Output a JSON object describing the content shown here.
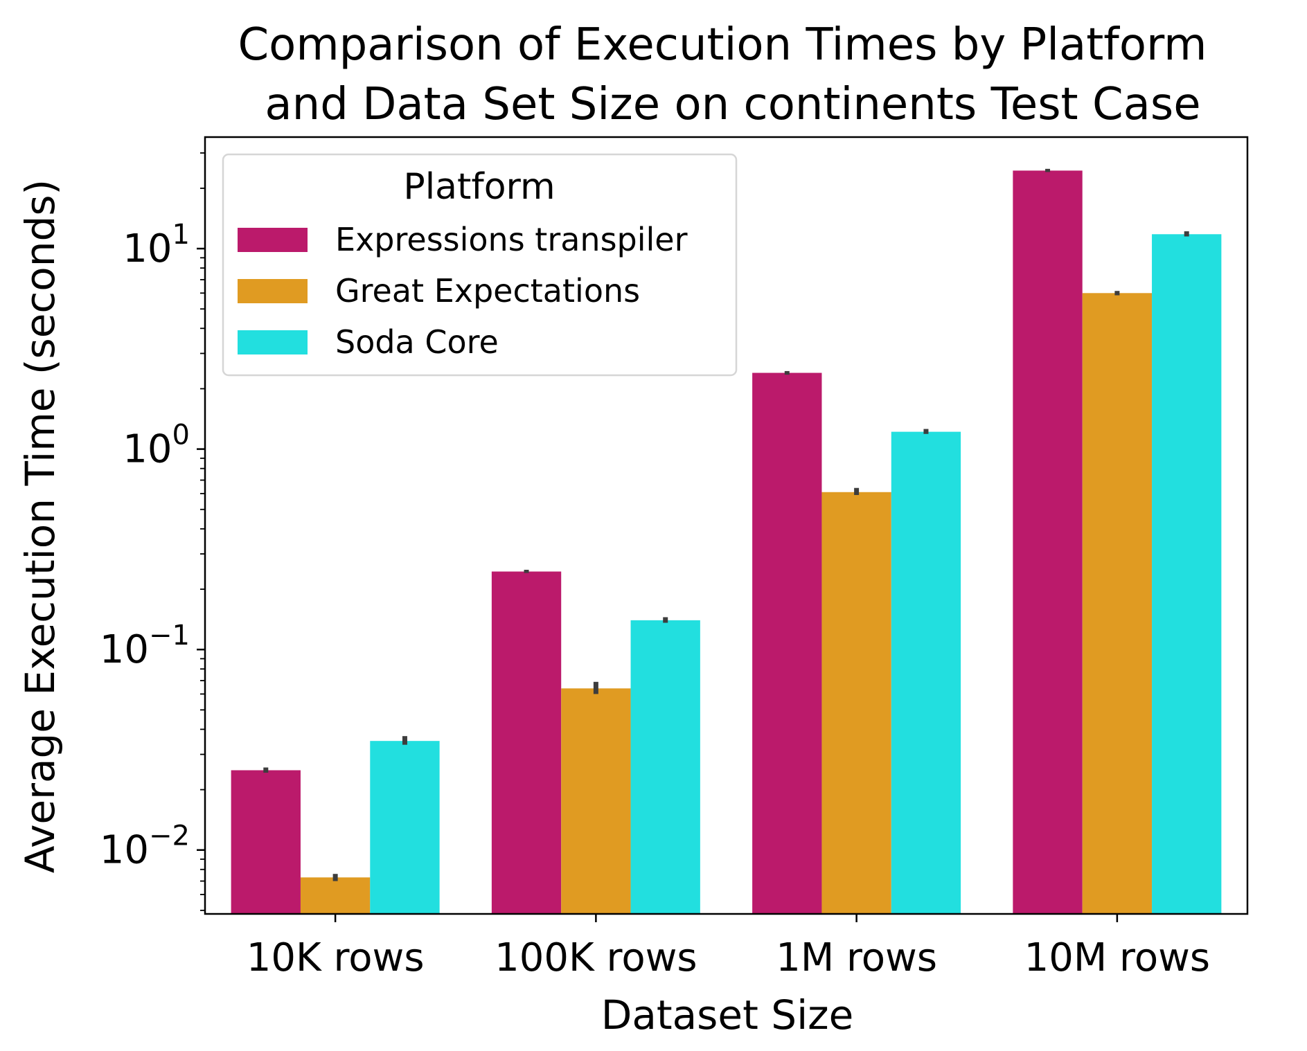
{
  "chart_data": {
    "type": "bar",
    "title_lines": [
      "Comparison of Execution Times by Platform",
      "and Data Set Size on continents Test Case"
    ],
    "xlabel": "Dataset Size",
    "ylabel": "Average Execution Time (seconds)",
    "y_scale": "log",
    "ylim": [
      0.0048,
      36
    ],
    "y_ticks": [
      {
        "value": 0.01,
        "base": "10",
        "exp": "−2"
      },
      {
        "value": 0.1,
        "base": "10",
        "exp": "−1"
      },
      {
        "value": 1,
        "base": "10",
        "exp": "0"
      },
      {
        "value": 10,
        "base": "10",
        "exp": "1"
      }
    ],
    "categories": [
      "10K rows",
      "100K rows",
      "1M rows",
      "10M rows"
    ],
    "legend": {
      "title": "Platform",
      "position": "upper left"
    },
    "grid": false,
    "series": [
      {
        "name": "Expressions transpiler",
        "color": "#bb1a6b",
        "values": [
          0.025,
          0.245,
          2.4,
          24.5
        ],
        "error_low": [
          0.0243,
          0.241,
          2.35,
          24.1
        ],
        "error_high": [
          0.0258,
          0.25,
          2.45,
          25.0
        ]
      },
      {
        "name": "Great Expectations",
        "color": "#e09b22",
        "values": [
          0.0073,
          0.064,
          0.61,
          6.0
        ],
        "error_low": [
          0.007,
          0.06,
          0.59,
          5.85
        ],
        "error_high": [
          0.0076,
          0.069,
          0.64,
          6.15
        ]
      },
      {
        "name": "Soda Core",
        "color": "#22dfdf",
        "values": [
          0.035,
          0.14,
          1.22,
          11.8
        ],
        "error_low": [
          0.0335,
          0.136,
          1.19,
          11.5
        ],
        "error_high": [
          0.037,
          0.145,
          1.26,
          12.2
        ]
      }
    ]
  }
}
